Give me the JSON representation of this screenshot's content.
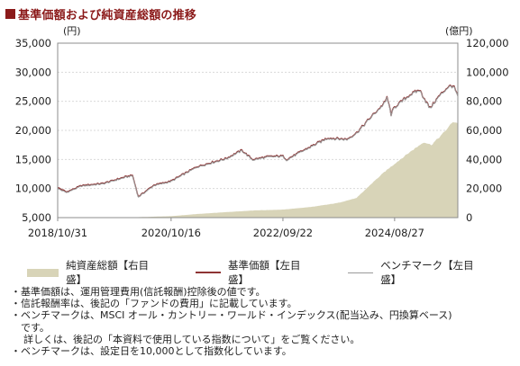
{
  "title": "基準価額および純資産総額の推移",
  "chart_data": {
    "type": "line",
    "left_axis": {
      "unit": "(円)",
      "min": 5000,
      "max": 35000,
      "ticks": [
        "5,000",
        "10,000",
        "15,000",
        "20,000",
        "25,000",
        "30,000",
        "35,000"
      ]
    },
    "right_axis": {
      "unit": "(億円)",
      "min": 0,
      "max": 120000,
      "ticks": [
        "0",
        "20,000",
        "40,000",
        "60,000",
        "80,000",
        "100,000",
        "120,000"
      ]
    },
    "x_range": [
      "2018-10-31",
      "2025-09-30"
    ],
    "x_ticks": [
      {
        "label": "2018/10/31",
        "date": "2018-10-31"
      },
      {
        "label": "2020/10/16",
        "date": "2020-10-16"
      },
      {
        "label": "2022/09/22",
        "date": "2022-09-22"
      },
      {
        "label": "2024/08/27",
        "date": "2024-08-27"
      }
    ],
    "series": [
      {
        "name": "純資産総額【右目盛】",
        "axis": "right",
        "style": "area",
        "color": "#d8d4b8",
        "x": [
          "2018-10-31",
          "2019-03-31",
          "2019-10-31",
          "2020-03-31",
          "2020-10-16",
          "2021-03-31",
          "2021-10-31",
          "2022-03-31",
          "2022-09-22",
          "2023-03-31",
          "2023-08-31",
          "2023-12-31",
          "2024-03-31",
          "2024-06-30",
          "2024-08-27",
          "2024-11-30",
          "2025-02-28",
          "2025-04-15",
          "2025-06-30",
          "2025-08-31",
          "2025-09-30"
        ],
        "y": [
          0,
          50,
          150,
          350,
          1000,
          2500,
          4000,
          5000,
          5500,
          7500,
          10000,
          13500,
          23000,
          32000,
          37000,
          45000,
          52000,
          50000,
          58000,
          66000,
          65000
        ]
      },
      {
        "name": "基準価額【左目盛】",
        "axis": "left",
        "style": "line",
        "color": "#8e3434",
        "x": [
          "2018-10-31",
          "2018-12-25",
          "2019-03-31",
          "2019-08-15",
          "2019-12-31",
          "2020-02-15",
          "2020-03-23",
          "2020-06-30",
          "2020-10-16",
          "2021-03-31",
          "2021-09-30",
          "2022-01-05",
          "2022-03-15",
          "2022-06-20",
          "2022-09-22",
          "2022-10-15",
          "2023-01-31",
          "2023-06-30",
          "2023-10-31",
          "2023-12-31",
          "2024-03-31",
          "2024-06-30",
          "2024-07-10",
          "2024-08-05",
          "2024-08-27",
          "2024-11-30",
          "2025-01-31",
          "2025-04-07",
          "2025-05-31",
          "2025-07-31",
          "2025-08-31",
          "2025-09-30"
        ],
        "y": [
          10200,
          9400,
          10500,
          10900,
          12000,
          12300,
          8600,
          10600,
          11300,
          13800,
          15200,
          16600,
          15000,
          15500,
          15600,
          15000,
          16600,
          18700,
          18500,
          19600,
          22300,
          24900,
          25800,
          22800,
          24000,
          26100,
          27000,
          23800,
          25800,
          27500,
          27700,
          26000
        ]
      },
      {
        "name": "ベンチマーク【左目盛】",
        "axis": "left",
        "style": "line",
        "color": "#9a9a9a",
        "x": [
          "2018-10-31",
          "2018-12-25",
          "2019-03-31",
          "2019-08-15",
          "2019-12-31",
          "2020-02-15",
          "2020-03-23",
          "2020-06-30",
          "2020-10-16",
          "2021-03-31",
          "2021-09-30",
          "2022-01-05",
          "2022-03-15",
          "2022-06-20",
          "2022-09-22",
          "2022-10-15",
          "2023-01-31",
          "2023-06-30",
          "2023-10-31",
          "2023-12-31",
          "2024-03-31",
          "2024-06-30",
          "2024-07-10",
          "2024-08-05",
          "2024-08-27",
          "2024-11-30",
          "2025-01-31",
          "2025-04-07",
          "2025-05-31",
          "2025-07-31",
          "2025-08-31",
          "2025-09-30"
        ],
        "y": [
          10000,
          9300,
          10400,
          10800,
          11900,
          12200,
          8500,
          10500,
          11200,
          13700,
          15100,
          16500,
          14900,
          15400,
          15500,
          14900,
          16500,
          18600,
          18400,
          19500,
          22200,
          24800,
          25700,
          22700,
          23900,
          26000,
          26900,
          23700,
          25700,
          27400,
          27600,
          25900
        ]
      }
    ]
  },
  "legend": [
    {
      "label": "純資産総額【右目盛】",
      "kind": "area"
    },
    {
      "label": "基準価額【左目盛】",
      "kind": "line"
    },
    {
      "label": "ベンチマーク【左目盛】",
      "kind": "bench"
    }
  ],
  "notes": [
    "・基準価額は、運用管理費用(信託報酬)控除後の値です。",
    "・信託報酬率は、後記の「ファンドの費用」に記載しています。",
    "・ベンチマークは、MSCI オール・カントリー・ワールド・インデックス(配当込み、円換算ベース)",
    "　です。",
    "詳しくは、後記の「本資料で使用している指数について」をご覧ください。",
    "・ベンチマークは、設定日を10,000として指数化しています。"
  ]
}
